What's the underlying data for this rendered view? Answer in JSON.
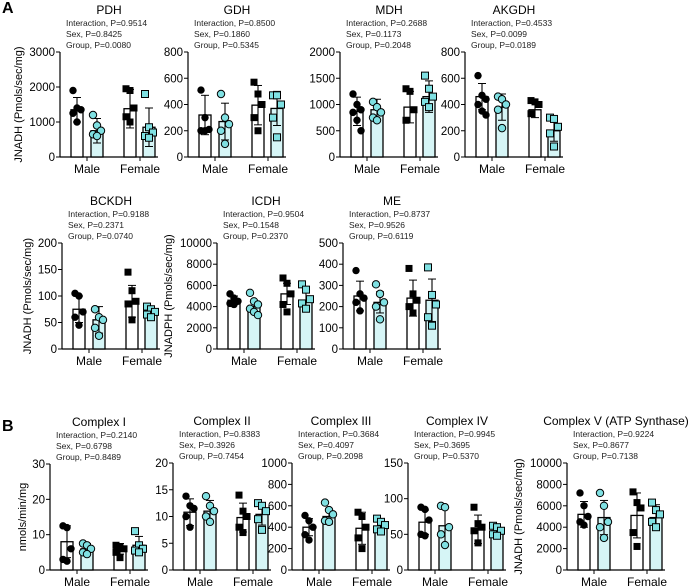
{
  "panels": {
    "a": "A",
    "b": "B"
  },
  "colors": {
    "control": "#000000",
    "treatment_fill": "#d6f5f6",
    "treatment_marker": "#7fe0e2",
    "axis": "#000000"
  },
  "chart_data": [
    {
      "type": "bar",
      "title": "PDH",
      "ylabel": "JNADH (Pmols/sec/mg)",
      "ylim": [
        0,
        3000
      ],
      "yticks": [
        0,
        1000,
        2000,
        3000
      ],
      "categories": [
        "Male",
        "Female"
      ],
      "stats": [
        "Interaction, P=0.9514",
        "Sex, P=0.8425",
        "Group, P=0.0080"
      ],
      "bars": [
        {
          "mean": 1350,
          "sd": 350,
          "points": [
            1900,
            1400,
            1350,
            1250,
            1000
          ]
        },
        {
          "mean": 750,
          "sd": 350,
          "points": [
            1200,
            900,
            750,
            650,
            600
          ]
        },
        {
          "mean": 1380,
          "sd": 550,
          "points": [
            1950,
            1900,
            1400,
            1150,
            1000
          ]
        },
        {
          "mean": 850,
          "sd": 550,
          "points": [
            1800,
            850,
            700,
            600,
            550
          ]
        }
      ]
    },
    {
      "type": "bar",
      "title": "GDH",
      "ylabel": "",
      "ylim": [
        0,
        800
      ],
      "yticks": [
        0,
        200,
        400,
        600,
        800
      ],
      "categories": [
        "Male",
        "Female"
      ],
      "stats": [
        "Interaction, P=0.8500",
        "Sex, P=0.1860",
        "Group, P=0.5345"
      ],
      "bars": [
        {
          "mean": 320,
          "sd": 150,
          "points": [
            510,
            300,
            210,
            200,
            200
          ]
        },
        {
          "mean": 270,
          "sd": 140,
          "points": [
            480,
            300,
            250,
            200,
            100
          ]
        },
        {
          "mean": 395,
          "sd": 150,
          "points": [
            570,
            480,
            400,
            300,
            200
          ]
        },
        {
          "mean": 370,
          "sd": 130,
          "points": [
            470,
            470,
            400,
            300,
            150
          ]
        }
      ]
    },
    {
      "type": "bar",
      "title": "MDH",
      "ylabel": "",
      "ylim": [
        0,
        2000
      ],
      "yticks": [
        0,
        500,
        1000,
        1500,
        2000
      ],
      "categories": [
        "Male",
        "Female"
      ],
      "stats": [
        "Interaction, P=0.2688",
        "Sex, P=0.1173",
        "Group, P=0.2048"
      ],
      "bars": [
        {
          "mean": 870,
          "sd": 270,
          "points": [
            1200,
            1000,
            900,
            850,
            700,
            500
          ]
        },
        {
          "mean": 900,
          "sd": 200,
          "points": [
            1050,
            950,
            850,
            750,
            700
          ]
        },
        {
          "mean": 950,
          "sd": 300,
          "points": [
            1300,
            1250,
            900,
            700
          ]
        },
        {
          "mean": 1150,
          "sd": 300,
          "points": [
            1550,
            1300,
            1150,
            1050,
            950
          ]
        }
      ]
    },
    {
      "type": "bar",
      "title": "AKGDH",
      "ylabel": "",
      "ylim": [
        0,
        800
      ],
      "yticks": [
        0,
        200,
        400,
        600,
        800
      ],
      "categories": [
        "Male",
        "Female"
      ],
      "stats": [
        "Interaction, P=0.4533",
        "Sex, P=0.0099",
        "Group, P=0.0189"
      ],
      "bars": [
        {
          "mean": 460,
          "sd": 100,
          "points": [
            620,
            470,
            440,
            400,
            350,
            320
          ]
        },
        {
          "mean": 380,
          "sd": 100,
          "points": [
            460,
            440,
            400,
            360,
            220
          ]
        },
        {
          "mean": 360,
          "sd": 60,
          "points": [
            430,
            420,
            400,
            330
          ]
        },
        {
          "mean": 200,
          "sd": 80,
          "points": [
            300,
            290,
            230,
            180,
            80
          ]
        }
      ]
    },
    {
      "type": "bar",
      "title": "BCKDH",
      "ylabel": "JNADH (Pmols/sec/mg)",
      "ylim": [
        0,
        200
      ],
      "yticks": [
        0,
        50,
        100,
        150,
        200
      ],
      "categories": [
        "Male",
        "Female"
      ],
      "stats": [
        "Interaction, P=0.9188",
        "Sex, P=0.2371",
        "Group, P=0.0740"
      ],
      "bars": [
        {
          "mean": 75,
          "sd": 25,
          "points": [
            105,
            100,
            70,
            60,
            45
          ]
        },
        {
          "mean": 55,
          "sd": 25,
          "points": [
            75,
            60,
            55,
            40,
            25
          ]
        },
        {
          "mean": 90,
          "sd": 30,
          "points": [
            145,
            110,
            90,
            85,
            55
          ]
        },
        {
          "mean": 70,
          "sd": 10,
          "points": [
            80,
            75,
            70,
            65,
            60
          ]
        }
      ]
    },
    {
      "type": "bar",
      "title": "ICDH",
      "ylabel": "JNADPH (Pmols/sec/mg)",
      "ylim": [
        0,
        10000
      ],
      "yticks": [
        0,
        2000,
        4000,
        6000,
        8000,
        10000
      ],
      "categories": [
        "Male",
        "Female"
      ],
      "stats": [
        "Interaction, P=0.9504",
        "Sex, P=0.1548",
        "Group, P=0.2370"
      ],
      "bars": [
        {
          "mean": 4600,
          "sd": 400,
          "points": [
            5200,
            4800,
            4500,
            4300,
            4200
          ]
        },
        {
          "mean": 4000,
          "sd": 600,
          "points": [
            5300,
            4500,
            4200,
            3800,
            3500,
            3200
          ]
        },
        {
          "mean": 5200,
          "sd": 1000,
          "points": [
            6700,
            6200,
            5200,
            4200,
            3500
          ]
        },
        {
          "mean": 4600,
          "sd": 900,
          "points": [
            6100,
            5600,
            4700,
            4300,
            3800
          ]
        }
      ]
    },
    {
      "type": "bar",
      "title": "ME",
      "ylabel": "",
      "ylim": [
        0,
        500
      ],
      "yticks": [
        0,
        100,
        200,
        300,
        400,
        500
      ],
      "categories": [
        "Male",
        "Female"
      ],
      "stats": [
        "Interaction, P=0.8737",
        "Sex, P=0.9526",
        "Group, P=0.6119"
      ],
      "bars": [
        {
          "mean": 250,
          "sd": 70,
          "points": [
            370,
            260,
            240,
            220,
            180
          ]
        },
        {
          "mean": 220,
          "sd": 50,
          "points": [
            305,
            260,
            220,
            200,
            140
          ]
        },
        {
          "mean": 240,
          "sd": 85,
          "points": [
            380,
            260,
            230,
            200,
            170
          ]
        },
        {
          "mean": 230,
          "sd": 100,
          "points": [
            385,
            255,
            210,
            150,
            110
          ]
        }
      ]
    },
    {
      "type": "bar",
      "title": "Complex I",
      "ylabel": "nmols/min/mg",
      "ylim": [
        0,
        30
      ],
      "yticks": [
        0,
        10,
        20,
        30
      ],
      "categories": [
        "Male",
        "Female"
      ],
      "stats": [
        "Interaction, P=0.2140",
        "Sex, P=0.6798",
        "Group, P=0.8489"
      ],
      "bars": [
        {
          "mean": 8,
          "sd": 4.5,
          "points": [
            12.5,
            12,
            6,
            3,
            2.5
          ]
        },
        {
          "mean": 6,
          "sd": 1.5,
          "points": [
            7.5,
            7,
            6,
            5,
            4.5
          ]
        },
        {
          "mean": 6,
          "sd": 1.5,
          "points": [
            7,
            6.5,
            6,
            5,
            3.5
          ]
        },
        {
          "mean": 7,
          "sd": 2.5,
          "points": [
            11,
            7,
            6,
            5.5,
            5
          ]
        }
      ]
    },
    {
      "type": "bar",
      "title": "Complex II",
      "ylabel": "",
      "ylim": [
        0,
        20
      ],
      "yticks": [
        0,
        5,
        10,
        15,
        20
      ],
      "categories": [
        "Male",
        "Female"
      ],
      "stats": [
        "Interaction, P=0.8383",
        "Sex, P=0.3926",
        "Group, P=0.7454"
      ],
      "bars": [
        {
          "mean": 10.8,
          "sd": 2.5,
          "points": [
            13.8,
            12,
            11.5,
            10,
            8
          ]
        },
        {
          "mean": 11,
          "sd": 2,
          "points": [
            13.8,
            12,
            11,
            10,
            9
          ]
        },
        {
          "mean": 9.8,
          "sd": 2.7,
          "points": [
            14,
            11,
            10,
            8,
            7
          ]
        },
        {
          "mean": 10.4,
          "sd": 2,
          "points": [
            12.5,
            12,
            11,
            9.5,
            7.5
          ]
        }
      ]
    },
    {
      "type": "bar",
      "title": "Complex III",
      "ylabel": "",
      "ylim": [
        0,
        1000
      ],
      "yticks": [
        0,
        200,
        400,
        600,
        800,
        1000
      ],
      "categories": [
        "Male",
        "Female"
      ],
      "stats": [
        "Interaction, P=0.3684",
        "Sex, P=0.4097",
        "Group, P=0.2098"
      ],
      "bars": [
        {
          "mean": 400,
          "sd": 80,
          "points": [
            510,
            460,
            400,
            330,
            280
          ]
        },
        {
          "mean": 500,
          "sd": 70,
          "points": [
            630,
            560,
            520,
            460,
            450
          ]
        },
        {
          "mean": 390,
          "sd": 150,
          "points": [
            540,
            500,
            400,
            300,
            200
          ]
        },
        {
          "mean": 410,
          "sd": 60,
          "points": [
            480,
            450,
            420,
            380,
            360
          ]
        }
      ]
    },
    {
      "type": "bar",
      "title": "Complex IV",
      "ylabel": "",
      "ylim": [
        0,
        150
      ],
      "yticks": [
        0,
        50,
        100,
        150
      ],
      "categories": [
        "Male",
        "Female"
      ],
      "stats": [
        "Interaction, P=0.9945",
        "Sex, P=0.3695",
        "Group, P=0.5370"
      ],
      "bars": [
        {
          "mean": 67,
          "sd": 17,
          "points": [
            88,
            85,
            70,
            50,
            48
          ]
        },
        {
          "mean": 62,
          "sd": 27,
          "points": [
            90,
            88,
            60,
            50,
            35
          ]
        },
        {
          "mean": 57,
          "sd": 20,
          "points": [
            88,
            65,
            60,
            55,
            38
          ]
        },
        {
          "mean": 55,
          "sd": 8,
          "points": [
            62,
            60,
            55,
            50,
            48
          ]
        }
      ]
    },
    {
      "type": "bar",
      "title": "Complex V (ATP Synthase)",
      "ylabel": "JNADH (Pmols/sec/mg)",
      "ylim": [
        0,
        10000
      ],
      "yticks": [
        0,
        2000,
        4000,
        6000,
        8000,
        10000
      ],
      "categories": [
        "Male",
        "Female"
      ],
      "stats": [
        "Interaction, P=0.9224",
        "Sex, P=0.8677",
        "Group, P=0.7138"
      ],
      "bars": [
        {
          "mean": 5200,
          "sd": 1200,
          "points": [
            7200,
            6000,
            5000,
            4500,
            4200
          ]
        },
        {
          "mean": 4900,
          "sd": 1600,
          "points": [
            7200,
            6000,
            4500,
            4000,
            3000
          ]
        },
        {
          "mean": 5100,
          "sd": 2100,
          "points": [
            7300,
            6300,
            5800,
            3500,
            2200
          ]
        },
        {
          "mean": 4900,
          "sd": 1200,
          "points": [
            6300,
            5600,
            5200,
            4500,
            4000
          ]
        }
      ]
    }
  ]
}
